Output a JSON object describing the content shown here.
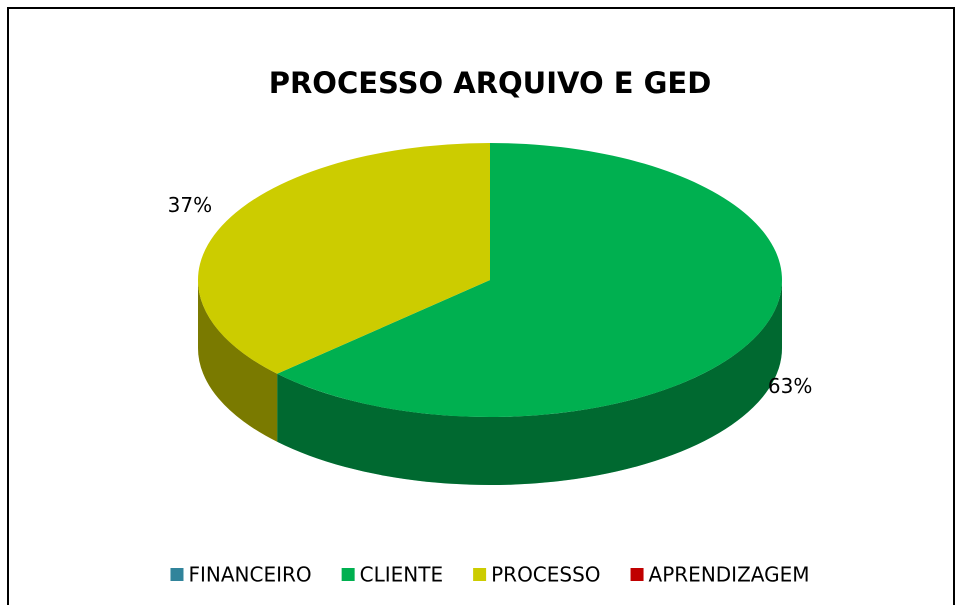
{
  "chart_data": {
    "type": "pie",
    "title": "PROCESSO ARQUIVO E GED",
    "categories": [
      "FINANCEIRO",
      "CLIENTE",
      "PROCESSO",
      "APRENDIZAGEM"
    ],
    "values": [
      0,
      63,
      37,
      0
    ],
    "value_labels": [
      null,
      "63%",
      "37%",
      null
    ],
    "colors": [
      "#31849b",
      "#00b050",
      "#cccc00",
      "#c00000"
    ],
    "legend": "bottom"
  }
}
